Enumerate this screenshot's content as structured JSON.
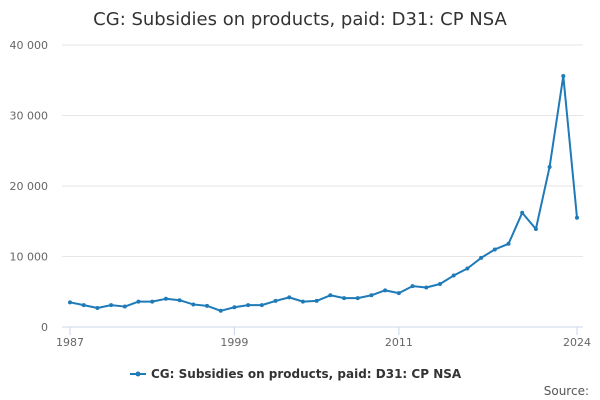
{
  "page": {
    "source_label": "Source:"
  },
  "colors": {
    "series": "#1f7ab8",
    "grid": "#e6e6e6",
    "axis": "#ccd6eb"
  },
  "chart_data": {
    "type": "line",
    "title": "CG: Subsidies on products, paid: D31: CP NSA",
    "xlabel": "",
    "ylabel": "",
    "xlim": [
      1987,
      2024
    ],
    "ylim": [
      0,
      40000
    ],
    "x_ticks": [
      1987,
      1999,
      2011,
      2024
    ],
    "x_tick_labels": [
      "1987",
      "1999",
      "2011",
      "2024"
    ],
    "y_ticks": [
      0,
      10000,
      20000,
      30000,
      40000
    ],
    "y_tick_labels": [
      "0",
      "10 000",
      "20 000",
      "30 000",
      "40 000"
    ],
    "legend": {
      "position": "bottom-center"
    },
    "series": [
      {
        "name": "CG: Subsidies on products, paid: D31: CP NSA",
        "x": [
          1987,
          1988,
          1989,
          1990,
          1991,
          1992,
          1993,
          1994,
          1995,
          1996,
          1997,
          1998,
          1999,
          2000,
          2001,
          2002,
          2003,
          2004,
          2005,
          2006,
          2007,
          2008,
          2009,
          2010,
          2011,
          2012,
          2013,
          2014,
          2015,
          2016,
          2017,
          2018,
          2019,
          2020,
          2021,
          2022,
          2023,
          2024
        ],
        "values": [
          3500,
          3100,
          2700,
          3100,
          2900,
          3600,
          3600,
          4000,
          3800,
          3200,
          3000,
          2300,
          2800,
          3100,
          3100,
          3700,
          4200,
          3600,
          3700,
          4500,
          4100,
          4100,
          4500,
          5200,
          4800,
          5800,
          5600,
          6100,
          7300,
          8300,
          9800,
          11000,
          11800,
          16200,
          13900,
          22700,
          35600,
          15500
        ]
      }
    ]
  }
}
